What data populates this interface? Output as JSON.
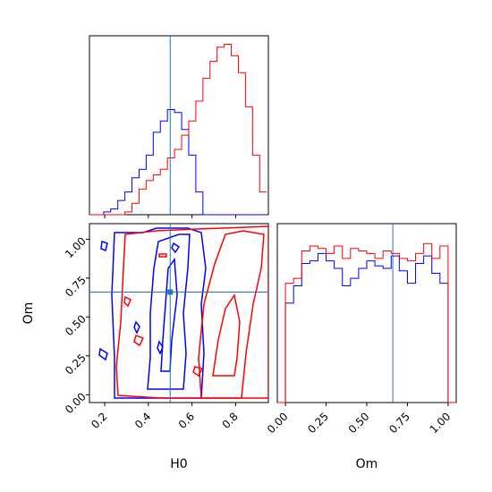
{
  "chart_data": [
    {
      "type": "histogram",
      "panel": "top-left",
      "variable": "H0",
      "xlim": [
        0.13,
        0.95
      ],
      "truth_line": 0.5,
      "bin_edges": [
        0.13,
        0.1625,
        0.195,
        0.2275,
        0.26,
        0.2925,
        0.325,
        0.3575,
        0.39,
        0.4225,
        0.455,
        0.4875,
        0.52,
        0.5525,
        0.585,
        0.6175,
        0.65,
        0.6825,
        0.715,
        0.7475,
        0.78,
        0.8125,
        0.845,
        0.8775,
        0.91,
        0.9425
      ],
      "series": [
        {
          "color": "#0000ff",
          "counts": [
            0,
            0,
            1,
            2,
            5,
            8,
            13,
            16,
            21,
            29,
            33,
            37,
            36,
            30,
            21,
            8,
            0,
            0,
            0,
            0,
            0,
            0,
            0,
            0,
            0
          ]
        },
        {
          "color": "#ff0000",
          "counts": [
            0,
            0,
            0,
            0,
            0,
            1,
            4,
            9,
            12,
            14,
            16,
            20,
            23,
            28,
            33,
            40,
            48,
            54,
            59,
            60,
            56,
            50,
            38,
            21,
            8
          ]
        }
      ]
    },
    {
      "type": "contour",
      "panel": "bottom-left",
      "xlabel": "H0",
      "ylabel": "Om",
      "xlim": [
        0.13,
        0.95
      ],
      "ylim": [
        -0.05,
        1.1
      ],
      "xticks": [
        "0.2",
        "0.4",
        "0.6",
        "0.8"
      ],
      "yticks": [
        "0.00",
        "0.25",
        "0.50",
        "0.75",
        "1.00"
      ],
      "truth_point": {
        "x": 0.5,
        "y": 0.66
      },
      "series": [
        {
          "color": "#0000ff",
          "region_x": [
            0.28,
            0.72
          ],
          "peak_x": 0.5
        },
        {
          "color": "#ff0000",
          "region_x": [
            0.42,
            0.95
          ],
          "peak_x": 0.78
        }
      ]
    },
    {
      "type": "histogram",
      "panel": "bottom-right",
      "variable": "Om",
      "xlabel": "Om",
      "xlim": [
        -0.05,
        1.05
      ],
      "xticks": [
        "0.00",
        "0.25",
        "0.50",
        "0.75",
        "1.00"
      ],
      "truth_line": 0.66,
      "bin_edges": [
        0.0,
        0.05,
        0.1,
        0.15,
        0.2,
        0.25,
        0.3,
        0.35,
        0.4,
        0.45,
        0.5,
        0.55,
        0.6,
        0.65,
        0.7,
        0.75,
        0.8,
        0.85,
        0.9,
        0.95,
        1.0
      ],
      "series": [
        {
          "color": "#0000ff",
          "counts": [
            40,
            47,
            56,
            57,
            60,
            57,
            54,
            47,
            50,
            54,
            57,
            55,
            54,
            59,
            53,
            48,
            56,
            59,
            52,
            48
          ]
        },
        {
          "color": "#ff0000",
          "counts": [
            48,
            50,
            61,
            63,
            62,
            60,
            63,
            58,
            62,
            61,
            60,
            58,
            61,
            60,
            58,
            57,
            60,
            64,
            58,
            63
          ]
        }
      ]
    }
  ]
}
